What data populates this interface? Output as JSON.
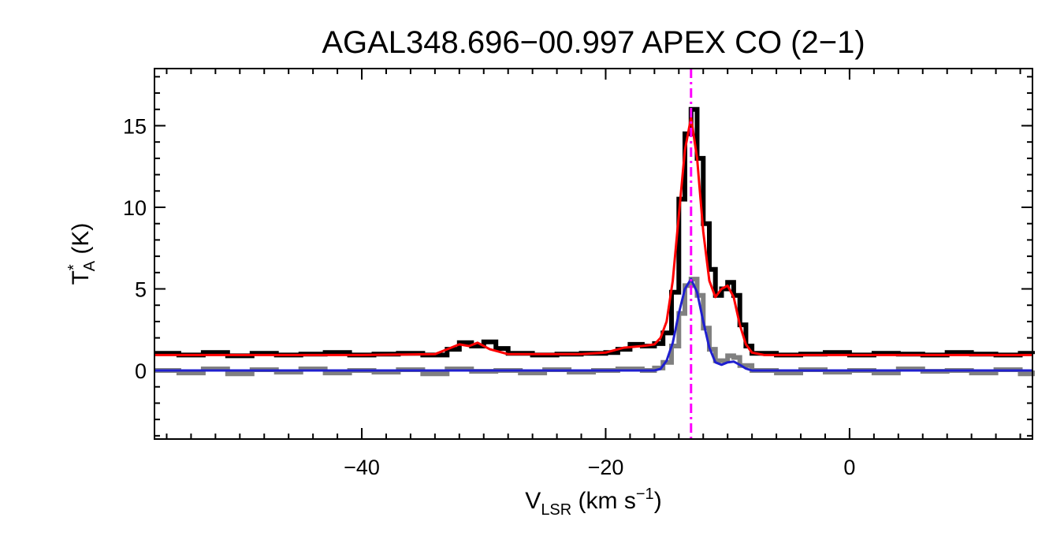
{
  "chart_data": {
    "type": "line",
    "title": "AGAL348.696−00.997  APEX CO (2−1)",
    "xlabel": {
      "main": "V",
      "sub": "LSR",
      "rest": " (km s",
      "sup": "−1",
      "close": ")"
    },
    "ylabel": {
      "main": "T",
      "sup": "*",
      "sub": "A",
      "rest": " (K)"
    },
    "xlim": [
      -57,
      15
    ],
    "ylim": [
      -4.2,
      18.5
    ],
    "x_ticks": [
      {
        "value": -40,
        "label": "−40"
      },
      {
        "value": -20,
        "label": "−20"
      },
      {
        "value": 0,
        "label": "0"
      }
    ],
    "y_ticks": [
      {
        "value": 0,
        "label": "0"
      },
      {
        "value": 5,
        "label": "5"
      },
      {
        "value": 10,
        "label": "10"
      },
      {
        "value": 15,
        "label": "15"
      }
    ],
    "x_minor_step": 2,
    "y_minor_step": 1,
    "grid": false,
    "legend": "none",
    "vline": {
      "x": -13,
      "color": "#ff00ff",
      "style": "dash-dot"
    },
    "series": [
      {
        "role": "observed spectrum (offset +1 K)",
        "style": "histogram",
        "color": "#000000",
        "points": [
          [
            -57,
            1.05
          ],
          [
            -55,
            0.95
          ],
          [
            -53,
            1.1
          ],
          [
            -51,
            0.9
          ],
          [
            -49,
            1.05
          ],
          [
            -47,
            0.95
          ],
          [
            -45,
            1.0
          ],
          [
            -43,
            1.1
          ],
          [
            -41,
            0.95
          ],
          [
            -39,
            1.0
          ],
          [
            -37,
            1.05
          ],
          [
            -35,
            0.95
          ],
          [
            -33,
            1.3
          ],
          [
            -32,
            1.7
          ],
          [
            -31,
            1.5
          ],
          [
            -30,
            1.75
          ],
          [
            -29,
            1.35
          ],
          [
            -28,
            1.05
          ],
          [
            -26,
            0.95
          ],
          [
            -24,
            1.0
          ],
          [
            -22,
            1.05
          ],
          [
            -20,
            1.1
          ],
          [
            -19,
            1.3
          ],
          [
            -18,
            1.6
          ],
          [
            -17,
            1.5
          ],
          [
            -16,
            1.65
          ],
          [
            -15.3,
            2.3
          ],
          [
            -14.6,
            4.8
          ],
          [
            -14,
            10.5
          ],
          [
            -13.5,
            14.5
          ],
          [
            -13,
            16.0
          ],
          [
            -12.5,
            13.0
          ],
          [
            -12,
            9.0
          ],
          [
            -11.5,
            6.2
          ],
          [
            -11,
            4.6
          ],
          [
            -10.5,
            5.0
          ],
          [
            -10,
            5.4
          ],
          [
            -9.5,
            4.6
          ],
          [
            -9,
            2.8
          ],
          [
            -8.5,
            1.5
          ],
          [
            -8,
            1.05
          ],
          [
            -6,
            0.95
          ],
          [
            -4,
            1.0
          ],
          [
            -2,
            1.1
          ],
          [
            0,
            0.95
          ],
          [
            2,
            1.05
          ],
          [
            4,
            1.0
          ],
          [
            6,
            0.95
          ],
          [
            8,
            1.1
          ],
          [
            10,
            1.0
          ],
          [
            12,
            0.95
          ],
          [
            14,
            1.05
          ],
          [
            15,
            1.0
          ]
        ]
      },
      {
        "role": "fit to offset spectrum",
        "style": "line",
        "color": "#ff0000",
        "points": [
          [
            -57,
            0.95
          ],
          [
            -40,
            0.95
          ],
          [
            -34,
            1.0
          ],
          [
            -33,
            1.3
          ],
          [
            -32,
            1.6
          ],
          [
            -31.2,
            1.5
          ],
          [
            -30.5,
            1.7
          ],
          [
            -29.5,
            1.3
          ],
          [
            -28,
            1.0
          ],
          [
            -22,
            1.0
          ],
          [
            -20,
            1.1
          ],
          [
            -18.5,
            1.4
          ],
          [
            -17,
            1.5
          ],
          [
            -16,
            1.6
          ],
          [
            -15.5,
            2.0
          ],
          [
            -15,
            3.0
          ],
          [
            -14.5,
            5.5
          ],
          [
            -14,
            9.5
          ],
          [
            -13.5,
            13.5
          ],
          [
            -13,
            15.5
          ],
          [
            -12.5,
            13.0
          ],
          [
            -12,
            8.5
          ],
          [
            -11.5,
            5.5
          ],
          [
            -11,
            4.5
          ],
          [
            -10.5,
            5.0
          ],
          [
            -10,
            5.2
          ],
          [
            -9.5,
            4.5
          ],
          [
            -9,
            2.8
          ],
          [
            -8.5,
            1.6
          ],
          [
            -8,
            1.1
          ],
          [
            -7,
            0.95
          ],
          [
            15,
            0.95
          ]
        ]
      },
      {
        "role": "observed spectrum",
        "style": "histogram",
        "color": "#808080",
        "points": [
          [
            -57,
            0.0
          ],
          [
            -55,
            -0.15
          ],
          [
            -53,
            0.1
          ],
          [
            -51,
            -0.2
          ],
          [
            -49,
            0.05
          ],
          [
            -47,
            -0.1
          ],
          [
            -45,
            0.1
          ],
          [
            -43,
            -0.15
          ],
          [
            -41,
            0.0
          ],
          [
            -39,
            -0.1
          ],
          [
            -37,
            0.05
          ],
          [
            -35,
            -0.2
          ],
          [
            -33,
            0.1
          ],
          [
            -31,
            -0.05
          ],
          [
            -29,
            0.0
          ],
          [
            -27,
            -0.15
          ],
          [
            -25,
            0.05
          ],
          [
            -23,
            -0.1
          ],
          [
            -21,
            0.0
          ],
          [
            -19,
            0.1
          ],
          [
            -17,
            0.0
          ],
          [
            -16,
            0.15
          ],
          [
            -15.3,
            0.5
          ],
          [
            -14.6,
            1.5
          ],
          [
            -14,
            3.5
          ],
          [
            -13.5,
            5.2
          ],
          [
            -13,
            5.6
          ],
          [
            -12.5,
            4.6
          ],
          [
            -12,
            2.6
          ],
          [
            -11.5,
            1.3
          ],
          [
            -11,
            0.6
          ],
          [
            -10.5,
            0.6
          ],
          [
            -10,
            0.9
          ],
          [
            -9.5,
            0.8
          ],
          [
            -9,
            0.3
          ],
          [
            -8,
            0.0
          ],
          [
            -6,
            -0.15
          ],
          [
            -4,
            0.05
          ],
          [
            -2,
            -0.1
          ],
          [
            0,
            0.0
          ],
          [
            2,
            -0.15
          ],
          [
            4,
            0.1
          ],
          [
            6,
            -0.05
          ],
          [
            8,
            0.0
          ],
          [
            10,
            -0.15
          ],
          [
            12,
            0.05
          ],
          [
            14,
            -0.2
          ],
          [
            15,
            0.0
          ]
        ]
      },
      {
        "role": "fit to spectrum",
        "style": "line",
        "color": "#1f1fcf",
        "points": [
          [
            -57,
            0.0
          ],
          [
            -16,
            0.0
          ],
          [
            -15.5,
            0.1
          ],
          [
            -15,
            0.6
          ],
          [
            -14.5,
            1.7
          ],
          [
            -14,
            3.5
          ],
          [
            -13.5,
            5.0
          ],
          [
            -13,
            5.6
          ],
          [
            -12.5,
            4.8
          ],
          [
            -12,
            3.0
          ],
          [
            -11.5,
            1.4
          ],
          [
            -11,
            0.5
          ],
          [
            -10.5,
            0.35
          ],
          [
            -10,
            0.5
          ],
          [
            -9.5,
            0.55
          ],
          [
            -9,
            0.35
          ],
          [
            -8.5,
            0.12
          ],
          [
            -8,
            0.0
          ],
          [
            15,
            0.0
          ]
        ]
      }
    ]
  }
}
